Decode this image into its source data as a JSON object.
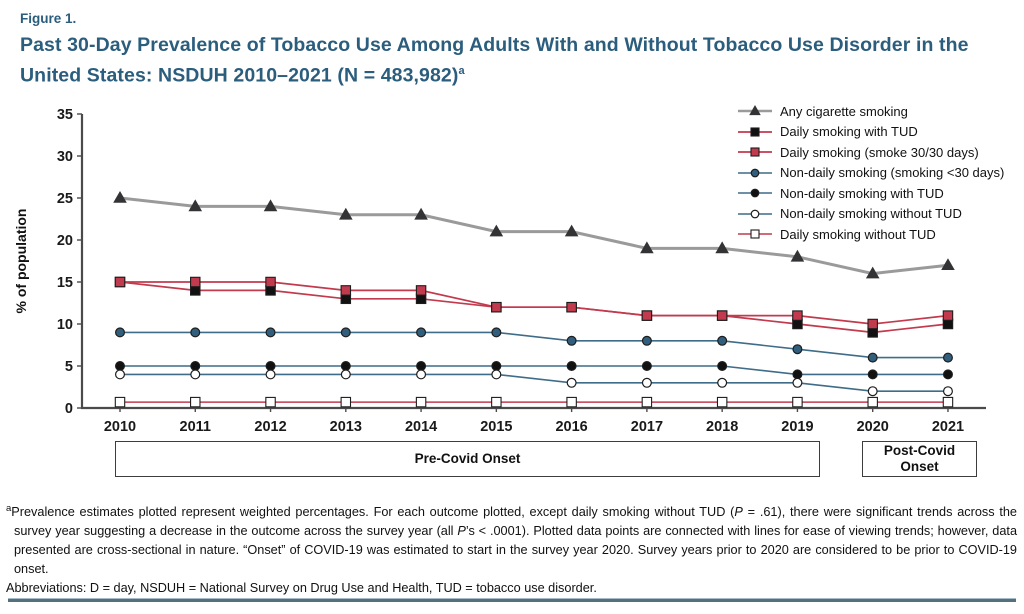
{
  "figure_label": "Figure 1.",
  "title": {
    "line1": "Past 30-Day Prevalence of Tobacco Use Among Adults With and Without Tobacco Use Disorder in the",
    "line2": "United States: NSDUH 2010–2021 (N = 483,982)",
    "superscript": "a"
  },
  "colors": {
    "heading": "#2b5d7d",
    "axis": "#4a4a4a",
    "red_line": "#c23a4e",
    "blue_line": "#3f6c88",
    "gray_line": "#9a9a9a",
    "dark_marker": "#1f1f22",
    "blue_marker_fill": "#305e7c",
    "open_marker_fill": "#ffffff",
    "rule_light": "#a7bcc6",
    "rule_dark": "#52707e"
  },
  "chart_data": {
    "type": "line",
    "title": "",
    "xlabel": "",
    "ylabel": "% of population",
    "ylim": [
      0,
      35
    ],
    "ytick_step": 5,
    "grid": false,
    "legend_position": "top-right",
    "categories": [
      "2010",
      "2011",
      "2012",
      "2013",
      "2014",
      "2015",
      "2016",
      "2017",
      "2018",
      "2019",
      "2020",
      "2021"
    ],
    "series": [
      {
        "id": "any-cigarette-smoking",
        "name": "Any cigarette smoking",
        "line_color": "#9a9a9a",
        "line_width": 3,
        "marker": "triangle",
        "marker_fill": "#333336",
        "values": [
          25,
          24,
          24,
          23,
          23,
          21,
          21,
          19,
          19,
          18,
          16,
          17
        ]
      },
      {
        "id": "daily-smoking-with-tud",
        "name": "Daily smoking with TUD",
        "line_color": "#c23a4e",
        "line_width": 1.7,
        "marker": "square",
        "marker_fill": "#111111",
        "values": [
          15,
          14,
          14,
          13,
          13,
          12,
          12,
          11,
          11,
          10,
          9,
          10
        ]
      },
      {
        "id": "daily-smoking-30-30",
        "name": "Daily smoking (smoke 30/30 days)",
        "line_color": "#c23a4e",
        "line_width": 1.7,
        "marker": "square",
        "marker_fill": "#c23a4e",
        "values": [
          15,
          15,
          15,
          14,
          14,
          12,
          12,
          11,
          11,
          11,
          10,
          11
        ]
      },
      {
        "id": "non-daily-smoking-lt30",
        "name": "Non-daily smoking (smoking <30 days)",
        "line_color": "#3f6c88",
        "line_width": 1.6,
        "marker": "circle",
        "marker_fill": "#305e7c",
        "values": [
          9,
          9,
          9,
          9,
          9,
          9,
          8,
          8,
          8,
          7,
          6,
          6
        ]
      },
      {
        "id": "non-daily-smoking-with-tud",
        "name": "Non-daily smoking with TUD",
        "line_color": "#3f6c88",
        "line_width": 1.6,
        "marker": "circle",
        "marker_fill": "#111111",
        "values": [
          5,
          5,
          5,
          5,
          5,
          5,
          5,
          5,
          5,
          4,
          4,
          4
        ]
      },
      {
        "id": "non-daily-smoking-without-tud",
        "name": "Non-daily smoking without TUD",
        "line_color": "#3f6c88",
        "line_width": 1.6,
        "marker": "circle",
        "marker_fill": "#ffffff",
        "values": [
          4,
          4,
          4,
          4,
          4,
          4,
          3,
          3,
          3,
          3,
          2,
          2
        ]
      },
      {
        "id": "daily-smoking-without-tud",
        "name": "Daily smoking without TUD",
        "line_color": "#c23a4e",
        "line_width": 1.6,
        "marker": "square",
        "marker_fill": "#ffffff",
        "values": [
          0.7,
          0.7,
          0.7,
          0.7,
          0.7,
          0.7,
          0.7,
          0.7,
          0.7,
          0.7,
          0.7,
          0.7
        ]
      }
    ]
  },
  "period_labels": {
    "pre": "Pre-Covid Onset",
    "post": "Post-Covid Onset"
  },
  "footnote": {
    "marker": "a",
    "segments": [
      {
        "text": "Prevalence estimates plotted represent weighted percentages. For each outcome plotted, except daily smoking without TUD (",
        "italic": false
      },
      {
        "text": "P",
        "italic": true
      },
      {
        "text": " = .61), there were significant trends across the survey year suggesting a decrease in the outcome across the survey year (all ",
        "italic": false
      },
      {
        "text": "P",
        "italic": true
      },
      {
        "text": "’s < .0001). Plotted data points are connected with lines for ease of viewing trends; however, data presented are cross-sectional in nature. “Onset” of COVID-19 was estimated to start in the survey year 2020. Survey years prior to 2020 are considered to be prior to COVID-19 onset.",
        "italic": false
      }
    ]
  },
  "abbreviations": "Abbreviations: D = day, NSDUH = National Survey on Drug Use and Health, TUD = tobacco use disorder."
}
